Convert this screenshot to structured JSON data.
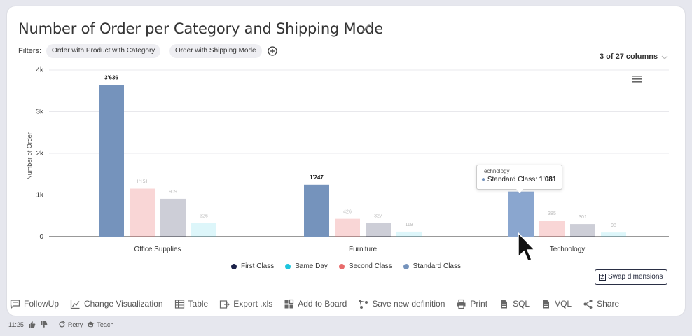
{
  "title": "Number of Order per Category and Shipping Mode",
  "filters": {
    "label": "Filters:",
    "chips": [
      "Order with Product with Category",
      "Order with Shipping Mode"
    ]
  },
  "columns_info": "3 of 27 columns",
  "colors": {
    "first_class": "#1b2149",
    "same_day": "#1ec5dd",
    "second_class": "#e86b6b",
    "standard_class": "#7593bc"
  },
  "chart_data": {
    "type": "bar",
    "categories": [
      "Office Supplies",
      "Furniture",
      "Technology"
    ],
    "series": [
      {
        "name": "Standard Class",
        "values": [
          3636,
          1247,
          1081
        ],
        "labels": [
          "3'636",
          "1'247",
          ""
        ]
      },
      {
        "name": "Second Class",
        "values": [
          1151,
          426,
          385
        ],
        "labels": [
          "1'151",
          "426",
          "385"
        ]
      },
      {
        "name": "First Class",
        "values": [
          909,
          327,
          301
        ],
        "labels": [
          "909",
          "327",
          "301"
        ]
      },
      {
        "name": "Same Day",
        "values": [
          326,
          119,
          98
        ],
        "labels": [
          "326",
          "119",
          "98"
        ]
      }
    ],
    "ylabel": "Number of Order",
    "yticks": [
      "0",
      "1k",
      "2k",
      "3k",
      "4k"
    ],
    "ylim": [
      0,
      4000
    ],
    "grid": true
  },
  "legend": [
    "First Class",
    "Same Day",
    "Second Class",
    "Standard Class"
  ],
  "tooltip": {
    "title": "Technology",
    "series": "Standard Class:",
    "value": "1'081"
  },
  "swap_button": "Swap dimensions",
  "toolbar": [
    {
      "label": "FollowUp",
      "icon": "chat-icon"
    },
    {
      "label": "Change Visualization",
      "icon": "line-chart-icon"
    },
    {
      "label": "Table",
      "icon": "table-icon"
    },
    {
      "label": "Export .xls",
      "icon": "export-icon"
    },
    {
      "label": "Add to Board",
      "icon": "board-icon"
    },
    {
      "label": "Save new definition",
      "icon": "flow-icon"
    },
    {
      "label": "Print",
      "icon": "print-icon"
    },
    {
      "label": "SQL",
      "icon": "file-icon"
    },
    {
      "label": "VQL",
      "icon": "file-icon"
    },
    {
      "label": "Share",
      "icon": "share-icon"
    }
  ],
  "status": {
    "time": "11:25",
    "retry": "Retry",
    "teach": "Teach"
  }
}
